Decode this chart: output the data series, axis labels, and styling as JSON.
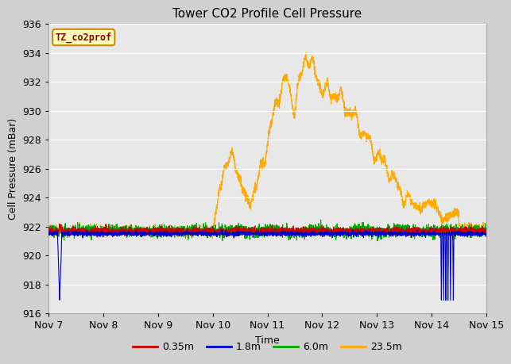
{
  "title": "Tower CO2 Profile Cell Pressure",
  "xlabel": "Time",
  "ylabel": "Cell Pressure (mBar)",
  "ylim": [
    916,
    936
  ],
  "yticks": [
    916,
    918,
    920,
    922,
    924,
    926,
    928,
    930,
    932,
    934,
    936
  ],
  "x_tick_labels": [
    "Nov 7",
    "Nov 8",
    "Nov 9",
    "Nov 10",
    "Nov 11",
    "Nov 12",
    "Nov 13",
    "Nov 14",
    "Nov 15"
  ],
  "x_tick_positions": [
    0,
    1,
    2,
    3,
    4,
    5,
    6,
    7,
    8
  ],
  "legend_entries": [
    "0.35m",
    "1.8m",
    "6.0m",
    "23.5m"
  ],
  "legend_colors": [
    "#cc0000",
    "#0000cc",
    "#00aa00",
    "#ffaa00"
  ],
  "annotation_text": "TZ_co2prof",
  "annotation_box_facecolor": "#ffffbb",
  "annotation_box_edgecolor": "#cc8800",
  "annotation_text_color": "#880000",
  "fig_facecolor": "#d0d0d0",
  "ax_facecolor": "#e8e8e8",
  "grid_color": "#ffffff",
  "title_fontsize": 11,
  "axis_label_fontsize": 9,
  "tick_fontsize": 9,
  "base_pressure": 921.7
}
